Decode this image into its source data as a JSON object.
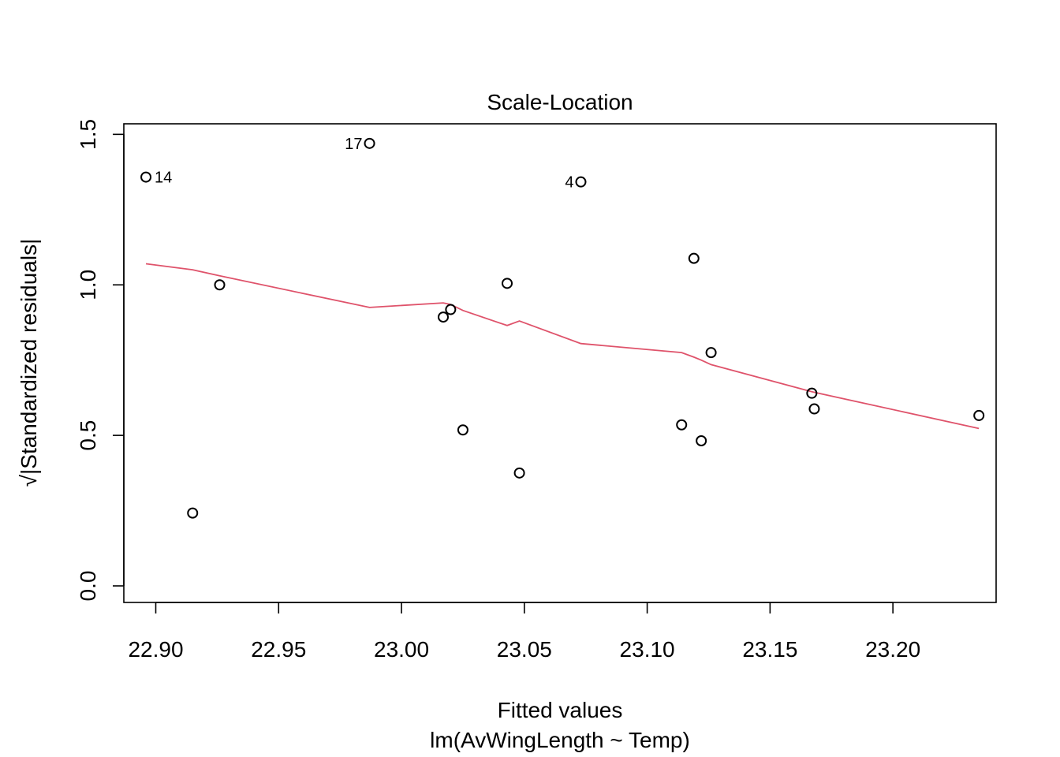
{
  "chart_data": {
    "type": "scatter",
    "title": "Scale-Location",
    "xlabel": "Fitted values",
    "subtitle": "lm(AvWingLength ~ Temp)",
    "ylabel": "√|Standardized residuals|",
    "xlim": [
      22.887,
      23.242
    ],
    "ylim": [
      -0.055,
      1.535
    ],
    "xticks": [
      "22.90",
      "22.95",
      "23.00",
      "23.05",
      "23.10",
      "23.15",
      "23.20"
    ],
    "yticks": [
      "0.0",
      "0.5",
      "1.0",
      "1.5"
    ],
    "grid": false,
    "points": [
      {
        "x": 22.896,
        "y": 1.358,
        "label": "14"
      },
      {
        "x": 22.987,
        "y": 1.47,
        "label": "17"
      },
      {
        "x": 23.073,
        "y": 1.342,
        "label": "4"
      },
      {
        "x": 22.915,
        "y": 0.242
      },
      {
        "x": 22.926,
        "y": 1.0
      },
      {
        "x": 23.017,
        "y": 0.893
      },
      {
        "x": 23.02,
        "y": 0.918
      },
      {
        "x": 23.025,
        "y": 0.518
      },
      {
        "x": 23.043,
        "y": 1.005
      },
      {
        "x": 23.048,
        "y": 0.375
      },
      {
        "x": 23.114,
        "y": 0.535
      },
      {
        "x": 23.119,
        "y": 1.088
      },
      {
        "x": 23.122,
        "y": 0.482
      },
      {
        "x": 23.126,
        "y": 0.775
      },
      {
        "x": 23.167,
        "y": 0.64
      },
      {
        "x": 23.168,
        "y": 0.588
      },
      {
        "x": 23.235,
        "y": 0.566
      }
    ],
    "smoother": {
      "color": "#DF536B",
      "x": [
        22.896,
        22.915,
        22.926,
        22.987,
        23.017,
        23.02,
        23.025,
        23.043,
        23.048,
        23.073,
        23.114,
        23.119,
        23.122,
        23.126,
        23.167,
        23.168,
        23.235
      ],
      "y": [
        1.07,
        1.05,
        1.03,
        0.925,
        0.94,
        0.935,
        0.915,
        0.865,
        0.88,
        0.805,
        0.775,
        0.76,
        0.75,
        0.735,
        0.645,
        0.643,
        0.523
      ]
    },
    "point_color": "#000000"
  }
}
